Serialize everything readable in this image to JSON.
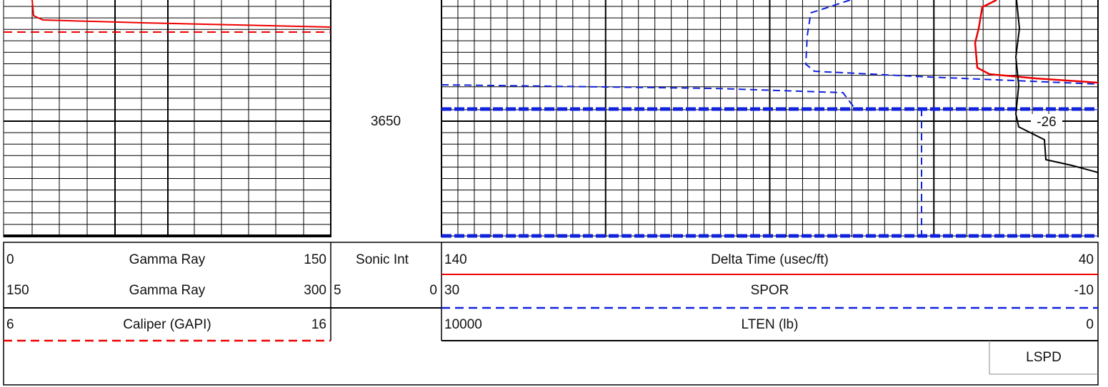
{
  "depth_label": "3650",
  "annotation": "-26",
  "left_headers": [
    {
      "min": "0",
      "name": "Gamma Ray",
      "max": "150"
    },
    {
      "min": "150",
      "name": "Gamma Ray",
      "max": "300"
    },
    {
      "min": "6",
      "name": "Caliper (GAPI)",
      "max": "16"
    }
  ],
  "depth_header": {
    "name": "Sonic Int",
    "min": "5",
    "max": "0"
  },
  "right_headers": [
    {
      "min": "140",
      "name": "Delta Time (usec/ft)",
      "max": "40"
    },
    {
      "min": "30",
      "name": "SPOR",
      "max": "-10"
    },
    {
      "min": "10000",
      "name": "LTEN (lb)",
      "max": "0"
    }
  ],
  "extra_header": "LSPD"
}
